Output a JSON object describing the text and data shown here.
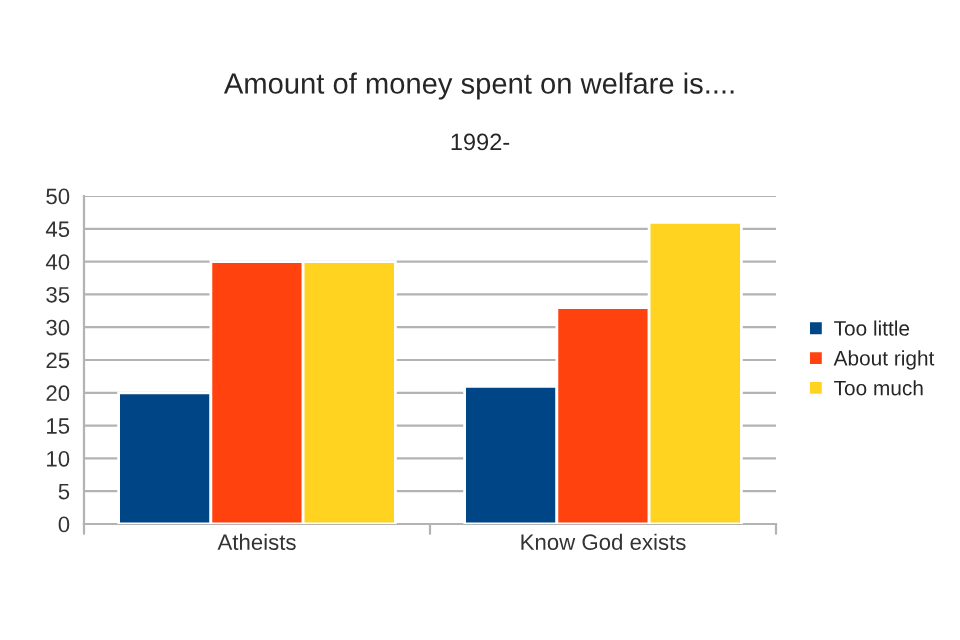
{
  "chart_data": {
    "type": "bar",
    "title": "Amount of money spent on welfare is....",
    "subtitle": "1992-",
    "categories": [
      "Atheists",
      "Know God exists"
    ],
    "series": [
      {
        "name": "Too little",
        "color": "#004586",
        "values": [
          20,
          21
        ]
      },
      {
        "name": "About right",
        "color": "#ff420e",
        "values": [
          40,
          33
        ]
      },
      {
        "name": "Too much",
        "color": "#ffd320",
        "values": [
          40,
          46
        ]
      }
    ],
    "ylim": [
      0,
      50
    ],
    "yticks": [
      0,
      5,
      10,
      15,
      20,
      25,
      30,
      35,
      40,
      45,
      50
    ],
    "grid": "y",
    "legend": "right"
  }
}
